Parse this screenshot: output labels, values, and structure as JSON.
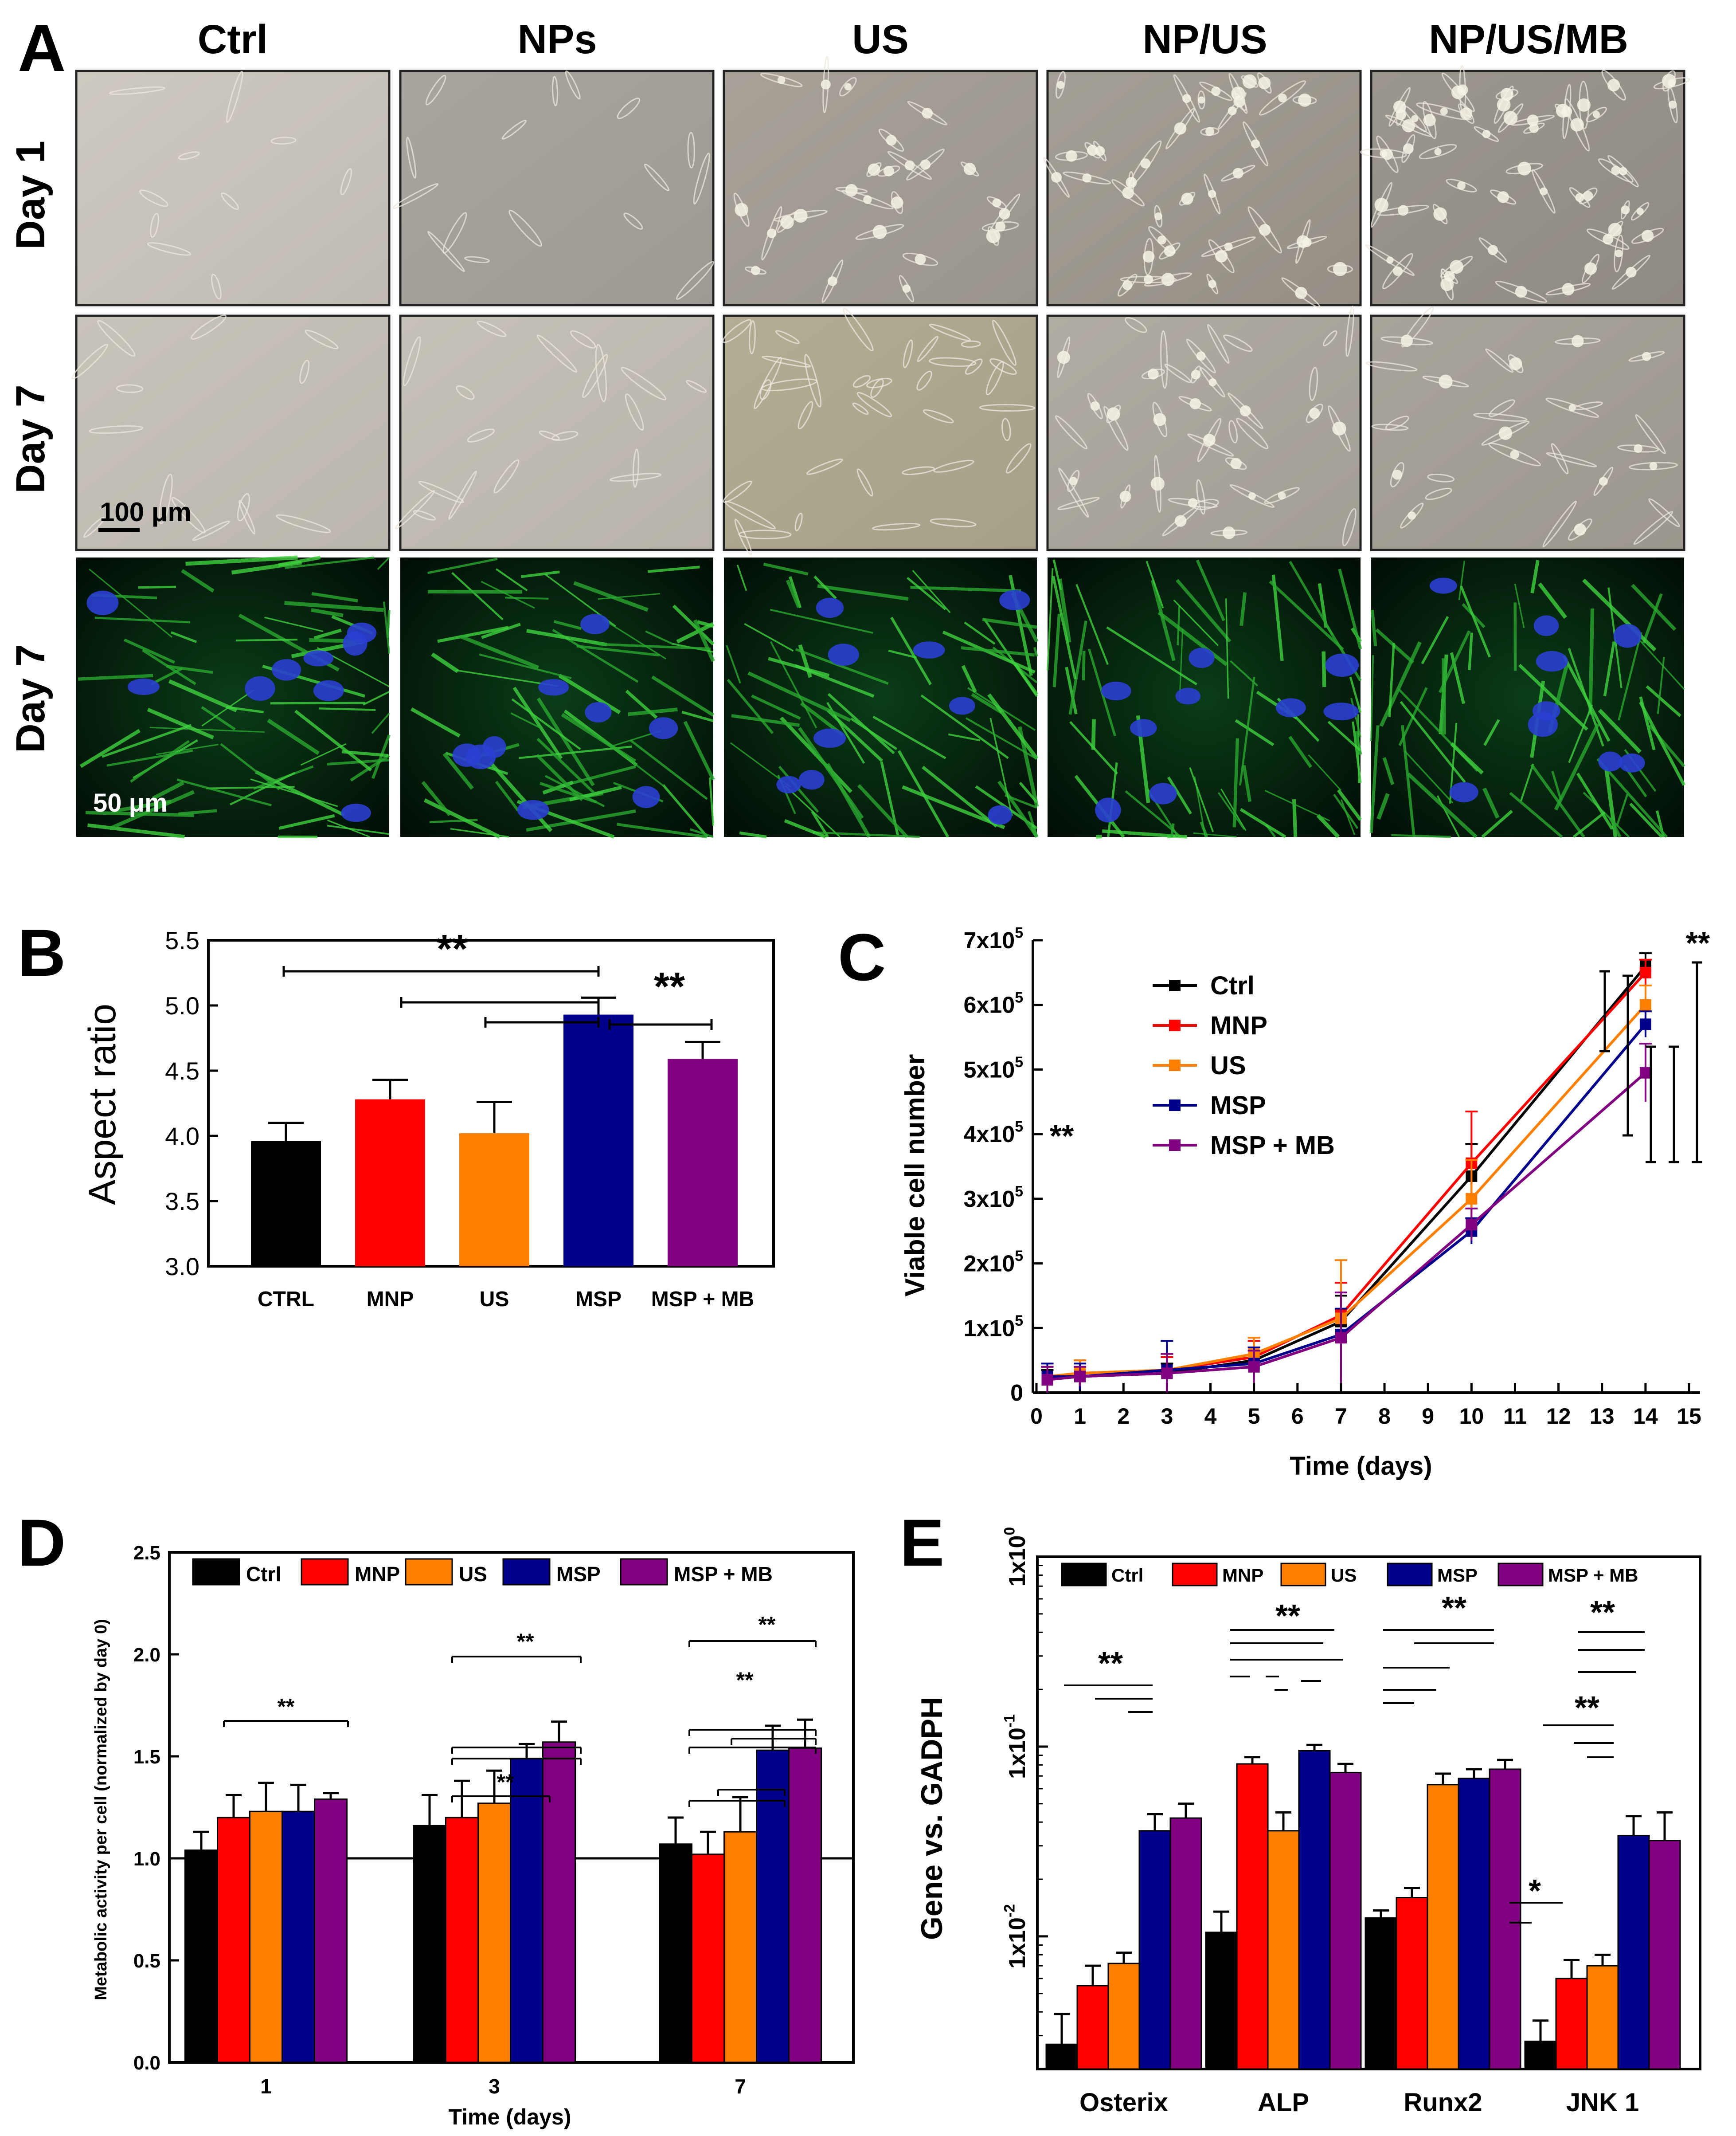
{
  "figure": {
    "panel_letters": [
      "A",
      "B",
      "C",
      "D",
      "E"
    ],
    "colors": {
      "Ctrl": "#000000",
      "MNP": "#ff0000",
      "US": "#ff8000",
      "MSP": "#00008b",
      "MSP + MB": "#800080"
    }
  },
  "panel_a": {
    "columns": [
      "Ctrl",
      "NPs",
      "US",
      "NP/US",
      "NP/US/MB"
    ],
    "rows": [
      "Day 1",
      "Day 7",
      "Day 7"
    ],
    "scale_bars": [
      "100 μm",
      "50 μm"
    ],
    "image_kinds": [
      "phase-contrast micrograph",
      "phase-contrast micrograph",
      "fluorescence micrograph"
    ]
  },
  "chart_data": [
    {
      "panel": "B",
      "type": "bar",
      "title": "",
      "xlabel": "",
      "ylabel": "Aspect ratio",
      "ylim": [
        3.0,
        5.5
      ],
      "yticks": [
        "3.0",
        "3.5",
        "4.0",
        "4.5",
        "5.0",
        "5.5"
      ],
      "categories": [
        "CTRL",
        "MNP",
        "US",
        "MSP",
        "MSP + MB"
      ],
      "values": [
        3.96,
        4.28,
        4.02,
        4.93,
        4.59
      ],
      "errors": [
        0.14,
        0.15,
        0.24,
        0.13,
        0.13
      ],
      "colors": [
        "#000000",
        "#ff0000",
        "#ff8000",
        "#00008b",
        "#800080"
      ],
      "significance": [
        "**",
        "**"
      ]
    },
    {
      "panel": "C",
      "type": "line",
      "xlabel": "Time (days)",
      "ylabel": "Viable cell number",
      "xlim": [
        0,
        15
      ],
      "xticks": [
        "0",
        "1",
        "2",
        "3",
        "4",
        "5",
        "6",
        "7",
        "8",
        "9",
        "10",
        "11",
        "12",
        "13",
        "14",
        "15"
      ],
      "ylim": [
        0,
        700000
      ],
      "yticks": [
        {
          "base": "0",
          "exp": ""
        },
        {
          "base": "1x10",
          "exp": "5"
        },
        {
          "base": "2x10",
          "exp": "5"
        },
        {
          "base": "3x10",
          "exp": "5"
        },
        {
          "base": "4x10",
          "exp": "5"
        },
        {
          "base": "5x10",
          "exp": "5"
        },
        {
          "base": "6x10",
          "exp": "5"
        },
        {
          "base": "7x10",
          "exp": "5"
        }
      ],
      "x": [
        0.25,
        1,
        3,
        5,
        7,
        10,
        14
      ],
      "series": [
        {
          "name": "Ctrl",
          "values": [
            20000,
            25000,
            30000,
            50000,
            110000,
            335000,
            660000
          ],
          "errors": [
            15000,
            15000,
            15000,
            20000,
            40000,
            50000,
            20000
          ]
        },
        {
          "name": "MNP",
          "values": [
            25000,
            30000,
            35000,
            55000,
            120000,
            355000,
            650000
          ],
          "errors": [
            15000,
            20000,
            20000,
            25000,
            50000,
            80000,
            20000
          ]
        },
        {
          "name": "US",
          "values": [
            25000,
            30000,
            35000,
            60000,
            115000,
            300000,
            600000
          ],
          "errors": [
            15000,
            20000,
            25000,
            25000,
            90000,
            60000,
            30000
          ]
        },
        {
          "name": "MSP",
          "values": [
            25000,
            25000,
            35000,
            45000,
            90000,
            250000,
            570000
          ],
          "errors": [
            20000,
            20000,
            45000,
            25000,
            40000,
            20000,
            20000
          ]
        },
        {
          "name": "MSP + MB",
          "values": [
            20000,
            25000,
            30000,
            40000,
            85000,
            260000,
            495000
          ],
          "errors": [
            20000,
            15000,
            30000,
            25000,
            70000,
            25000,
            45000
          ]
        }
      ],
      "significance": [
        "**",
        "**"
      ]
    },
    {
      "panel": "D",
      "type": "bar",
      "xlabel": "Time (days)",
      "ylabel": "Metabolic activity per cell (normalized by day 0)",
      "ylim": [
        0.0,
        2.5
      ],
      "yticks": [
        "0.0",
        "0.5",
        "1.0",
        "1.5",
        "2.0",
        "2.5"
      ],
      "categories": [
        "1",
        "3",
        "7"
      ],
      "reference_line": 1.0,
      "series": [
        {
          "name": "Ctrl",
          "values": [
            1.04,
            1.16,
            1.07
          ],
          "errors": [
            0.09,
            0.15,
            0.13
          ]
        },
        {
          "name": "MNP",
          "values": [
            1.2,
            1.2,
            1.02
          ],
          "errors": [
            0.11,
            0.18,
            0.11
          ]
        },
        {
          "name": "US",
          "values": [
            1.23,
            1.27,
            1.13
          ],
          "errors": [
            0.14,
            0.16,
            0.17
          ]
        },
        {
          "name": "MSP",
          "values": [
            1.23,
            1.49,
            1.53
          ],
          "errors": [
            0.13,
            0.07,
            0.12
          ]
        },
        {
          "name": "MSP + MB",
          "values": [
            1.29,
            1.57,
            1.54
          ],
          "errors": [
            0.03,
            0.1,
            0.14
          ]
        }
      ],
      "significance": [
        "**",
        "**",
        "**",
        "**",
        "**"
      ]
    },
    {
      "panel": "E",
      "type": "bar",
      "xlabel": "",
      "ylabel": "Gene vs. GADPH",
      "yscale": "log",
      "ylim": [
        0.002,
        1
      ],
      "yticks": [
        {
          "base": "1x10",
          "exp": "-2"
        },
        {
          "base": "1x10",
          "exp": "-1"
        },
        {
          "base": "1x10",
          "exp": "0"
        }
      ],
      "categories": [
        "Osterix",
        "ALP",
        "Runx2",
        "JNK 1"
      ],
      "series": [
        {
          "name": "Ctrl",
          "values": [
            0.0027,
            0.0105,
            0.0125,
            0.0028
          ],
          "errors": [
            0.0012,
            0.003,
            0.0012,
            0.0008
          ]
        },
        {
          "name": "MNP",
          "values": [
            0.0055,
            0.081,
            0.016,
            0.006
          ],
          "errors": [
            0.0015,
            0.007,
            0.002,
            0.0015
          ]
        },
        {
          "name": "US",
          "values": [
            0.0072,
            0.036,
            0.063,
            0.007
          ],
          "errors": [
            0.001,
            0.009,
            0.009,
            0.001
          ]
        },
        {
          "name": "MSP",
          "values": [
            0.036,
            0.095,
            0.068,
            0.034
          ],
          "errors": [
            0.008,
            0.007,
            0.008,
            0.009
          ]
        },
        {
          "name": "MSP + MB",
          "values": [
            0.042,
            0.073,
            0.076,
            0.032
          ],
          "errors": [
            0.008,
            0.008,
            0.009,
            0.013
          ]
        }
      ],
      "significance": [
        "**",
        "**",
        "**",
        "**",
        "**",
        "*"
      ]
    }
  ]
}
